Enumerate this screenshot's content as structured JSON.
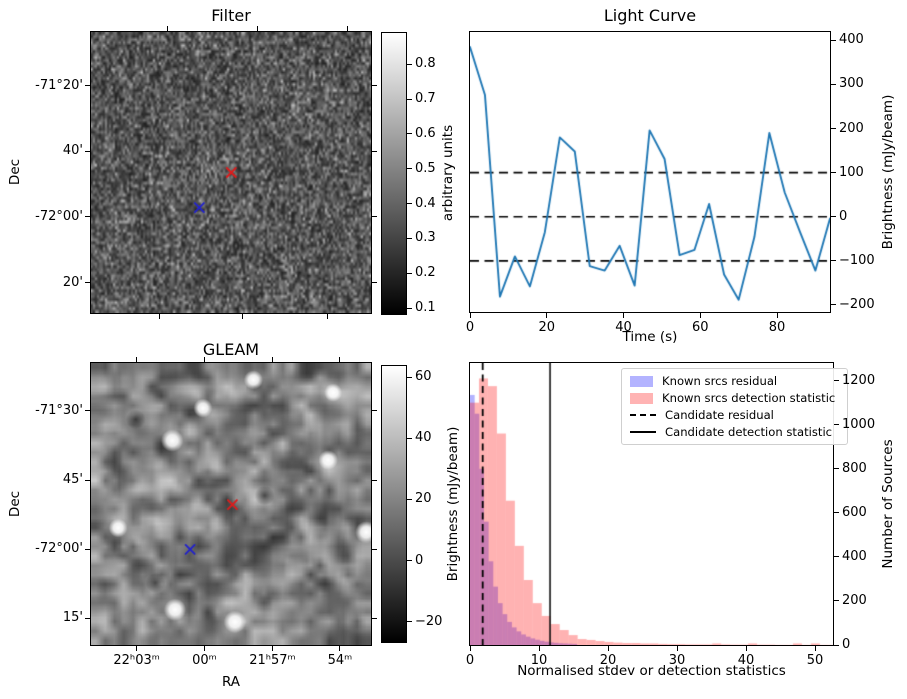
{
  "figure": {
    "background": "#ffffff"
  },
  "chart_data": [
    {
      "id": "filter_map",
      "type": "heatmap",
      "title": "Filter",
      "ylabel": "Dec",
      "dec_ticks": [
        {
          "label": "-71°20'",
          "pos": 0.192
        },
        {
          "label": "40'",
          "pos": 0.424
        },
        {
          "label": "-72°00'",
          "pos": 0.658
        },
        {
          "label": "20'",
          "pos": 0.892
        }
      ],
      "top_ticks_pos": [
        0.273,
        0.594,
        0.916
      ],
      "bottom_ticks_pos": [
        0.243,
        0.54,
        0.843
      ],
      "colorbar": {
        "label": "arbitrary units",
        "min": 0.08,
        "max": 0.893,
        "ticks": [
          0.1,
          0.2,
          0.3,
          0.4,
          0.5,
          0.6,
          0.7,
          0.8
        ]
      },
      "markers": [
        {
          "shape": "x",
          "color": "#dd1c1c",
          "x": 0.501,
          "y": 0.5
        },
        {
          "shape": "x",
          "color": "#2222cc",
          "x": 0.387,
          "y": 0.625
        }
      ]
    },
    {
      "id": "light_curve",
      "type": "line",
      "title": "Light Curve",
      "xlabel": "Time (s)",
      "ylabel": "Brightness (mJy/beam)",
      "xlim": [
        0,
        93.8
      ],
      "ylim": [
        -216,
        419
      ],
      "x_ticks": [
        0,
        20,
        40,
        60,
        80
      ],
      "y_ticks": [
        400,
        300,
        200,
        100,
        0,
        -100,
        -200
      ],
      "ref_lines": [
        100,
        0,
        -100
      ],
      "line_color": "#1f77b4",
      "x": [
        0,
        3.9,
        7.8,
        11.7,
        15.6,
        19.5,
        23.4,
        27.3,
        31.2,
        35.1,
        39.0,
        42.9,
        46.8,
        50.7,
        54.6,
        58.5,
        62.3,
        66.2,
        70.0,
        74.1,
        78.0,
        82.0,
        86.0,
        90.0,
        93.8
      ],
      "y": [
        385,
        276,
        -181,
        -90,
        -158,
        -35,
        180,
        148,
        -112,
        -122,
        -66,
        -156,
        196,
        131,
        -87,
        -75,
        29,
        -131,
        -188,
        -46,
        190,
        55,
        -35,
        -122,
        -4
      ]
    },
    {
      "id": "gleam_map",
      "type": "heatmap",
      "title": "GLEAM",
      "xlabel": "RA",
      "ylabel": "Dec",
      "dec_ticks": [
        {
          "label": "-71°30'",
          "pos": 0.17
        },
        {
          "label": "45'",
          "pos": 0.415
        },
        {
          "label": "-72°00'",
          "pos": 0.661
        },
        {
          "label": "15'",
          "pos": 0.906
        }
      ],
      "ra_ticks": [
        {
          "label": "22ʰ03ᵐ",
          "pos": 0.163
        },
        {
          "label": "00ᵐ",
          "pos": 0.405
        },
        {
          "label": "21ʰ57ᵐ",
          "pos": 0.648
        },
        {
          "label": "54ᵐ",
          "pos": 0.889
        }
      ],
      "colorbar": {
        "label": "Brightness (mJy/beam)",
        "min": -27,
        "max": 64,
        "ticks": [
          -20,
          0,
          20,
          40,
          60
        ]
      },
      "markers": [
        {
          "shape": "x",
          "color": "#dd1c1c",
          "x": 0.505,
          "y": 0.502
        },
        {
          "shape": "x",
          "color": "#2222cc",
          "x": 0.354,
          "y": 0.661
        }
      ],
      "bright_spots": [
        [
          0.58,
          0.06
        ],
        [
          0.865,
          0.105
        ],
        [
          0.4,
          0.16
        ],
        [
          0.29,
          0.275
        ],
        [
          0.847,
          0.344
        ],
        [
          0.097,
          0.585
        ],
        [
          0.983,
          0.6
        ],
        [
          0.514,
          0.918
        ],
        [
          0.3,
          0.875
        ]
      ]
    },
    {
      "id": "histogram",
      "type": "bar",
      "xlabel": "Normalised stdev or detection statistics",
      "ylabel": "Number of Sources",
      "xlim": [
        0,
        52.6
      ],
      "ylim": [
        0,
        1280
      ],
      "x_ticks": [
        0,
        10,
        20,
        30,
        40,
        50
      ],
      "y_ticks": [
        0,
        200,
        400,
        600,
        800,
        1000,
        1200
      ],
      "series": [
        {
          "name": "Known srcs residual",
          "color": "#0000ff",
          "alpha": 0.3,
          "bin_start": 0,
          "bin_width": 0.675,
          "values": [
            1135,
            1050,
            800,
            560,
            380,
            265,
            190,
            140,
            105,
            80,
            62,
            48,
            38,
            30,
            24,
            19,
            15,
            12,
            10,
            8,
            7,
            6,
            5
          ]
        },
        {
          "name": "Known srcs detection statistic",
          "color": "#ff0000",
          "alpha": 0.3,
          "bin_start": 0,
          "bin_width": 1.3,
          "values": [
            1100,
            1210,
            1175,
            960,
            655,
            450,
            295,
            190,
            132,
            95,
            68,
            45,
            27,
            23,
            18,
            14,
            11,
            9,
            9,
            7,
            7,
            5,
            4,
            4,
            3,
            3,
            3,
            7,
            3,
            2,
            2,
            7,
            2,
            2,
            1,
            1,
            7,
            1,
            7,
            1,
            1
          ]
        }
      ],
      "candidate_residual": 1.84,
      "candidate_detection_statistic": 11.6,
      "legend": [
        {
          "label": "Known srcs residual",
          "swatch": "patch",
          "color": "#b3b3ff"
        },
        {
          "label": "Known srcs detection statistic",
          "swatch": "patch",
          "color": "#ffb3b3"
        },
        {
          "label": "Candidate residual",
          "swatch": "dashed-line",
          "color": "#000000"
        },
        {
          "label": "Candidate detection statistic",
          "swatch": "solid-line",
          "color": "#000000"
        }
      ]
    }
  ]
}
